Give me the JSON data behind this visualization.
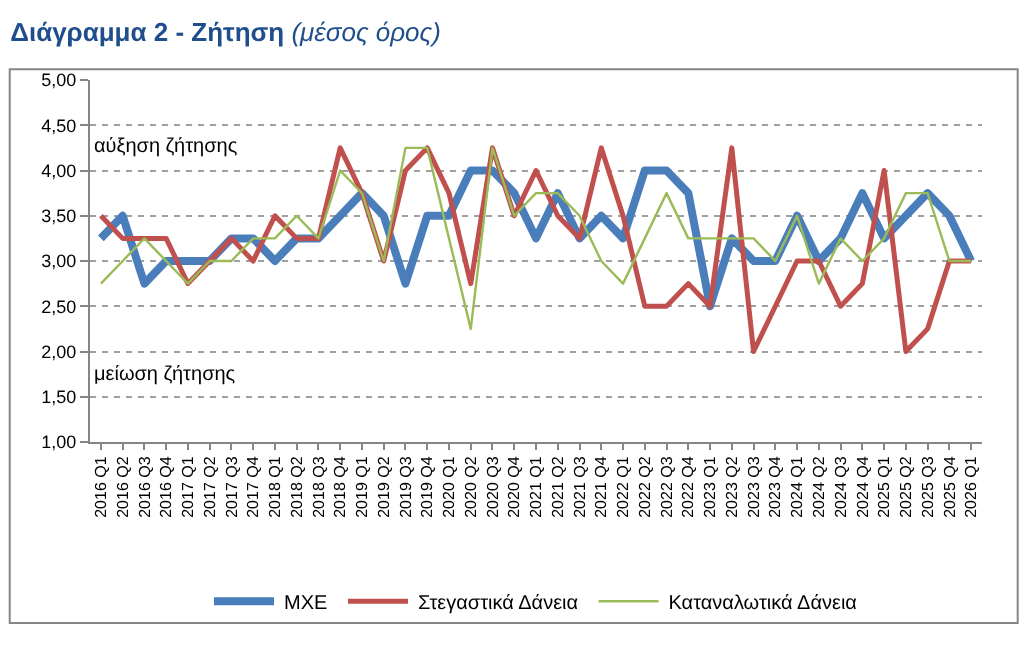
{
  "chart_data": {
    "type": "line",
    "title": "Διάγραμμα 2 - Ζήτηση",
    "subtitle": "(μέσος όρος)",
    "categories": [
      "2016 Q1",
      "2016 Q2",
      "2016 Q3",
      "2016 Q4",
      "2017 Q1",
      "2017 Q2",
      "2017 Q3",
      "2017 Q4",
      "2018 Q1",
      "2018 Q2",
      "2018 Q3",
      "2018 Q4",
      "2019 Q1",
      "2019 Q2",
      "2019 Q3",
      "2019 Q4",
      "2020 Q1",
      "2020 Q2",
      "2020 Q3",
      "2020 Q4",
      "2021 Q1",
      "2021 Q2",
      "2021 Q3",
      "2021 Q4",
      "2022 Q1",
      "2022 Q2",
      "2022 Q3",
      "2022 Q4",
      "2023 Q1",
      "2023 Q2",
      "2023 Q3",
      "2023 Q4",
      "2024 Q1",
      "2024 Q2",
      "2024 Q3",
      "2024 Q4",
      "2025 Q1",
      "2025 Q2",
      "2025 Q3",
      "2025 Q4",
      "2026 Q1"
    ],
    "series": [
      {
        "name": "ΜΧΕ",
        "color": "#4a7ebb",
        "values": [
          3.25,
          3.5,
          2.75,
          3.0,
          3.0,
          3.0,
          3.25,
          3.25,
          3.0,
          3.25,
          3.25,
          3.5,
          3.75,
          3.5,
          2.75,
          3.5,
          3.5,
          4.0,
          4.0,
          3.75,
          3.25,
          3.75,
          3.25,
          3.5,
          3.25,
          4.0,
          4.0,
          3.75,
          2.5,
          3.25,
          3.0,
          3.0,
          3.5,
          3.0,
          3.25,
          3.75,
          3.25,
          3.5,
          3.75,
          3.5,
          3.0
        ]
      },
      {
        "name": "Στεγαστικά Δάνεια",
        "color": "#c0504d",
        "values": [
          3.5,
          3.25,
          3.25,
          3.25,
          2.75,
          3.0,
          3.25,
          3.0,
          3.5,
          3.25,
          3.25,
          4.25,
          3.75,
          3.0,
          4.0,
          4.25,
          3.75,
          2.75,
          4.25,
          3.5,
          4.0,
          3.5,
          3.25,
          4.25,
          3.5,
          2.5,
          2.5,
          2.75,
          2.5,
          4.25,
          2.0,
          2.5,
          3.0,
          3.0,
          2.5,
          2.75,
          4.0,
          2.0,
          2.25,
          3.0,
          3.0
        ]
      },
      {
        "name": "Καταναλωτικά Δάνεια",
        "color": "#9bbb59",
        "values": [
          2.75,
          3.0,
          3.25,
          3.0,
          2.75,
          3.0,
          3.0,
          3.25,
          3.25,
          3.5,
          3.25,
          4.0,
          3.75,
          3.0,
          4.25,
          4.25,
          3.25,
          2.25,
          4.25,
          3.5,
          3.75,
          3.75,
          3.5,
          3.0,
          2.75,
          3.25,
          3.75,
          3.25,
          3.25,
          3.25,
          3.25,
          3.0,
          3.5,
          2.75,
          3.25,
          3.0,
          3.25,
          3.75,
          3.75,
          3.0,
          3.0
        ]
      }
    ],
    "ylim": [
      1,
      5
    ],
    "yticks": [
      {
        "value": 1,
        "label": "1,00"
      },
      {
        "value": 1.5,
        "label": "1,50"
      },
      {
        "value": 2,
        "label": "2,00"
      },
      {
        "value": 2.5,
        "label": "2,50"
      },
      {
        "value": 3,
        "label": "3,00"
      },
      {
        "value": 3.5,
        "label": "3,50"
      },
      {
        "value": 4,
        "label": "4,00"
      },
      {
        "value": 4.5,
        "label": "4,50"
      },
      {
        "value": 5,
        "label": "5,00"
      }
    ],
    "annotations": [
      "αύξηση ζήτησης",
      "μείωση ζήτησης"
    ],
    "grid": "y",
    "legend": "bottom",
    "marker": "none",
    "line_style": "solid"
  }
}
